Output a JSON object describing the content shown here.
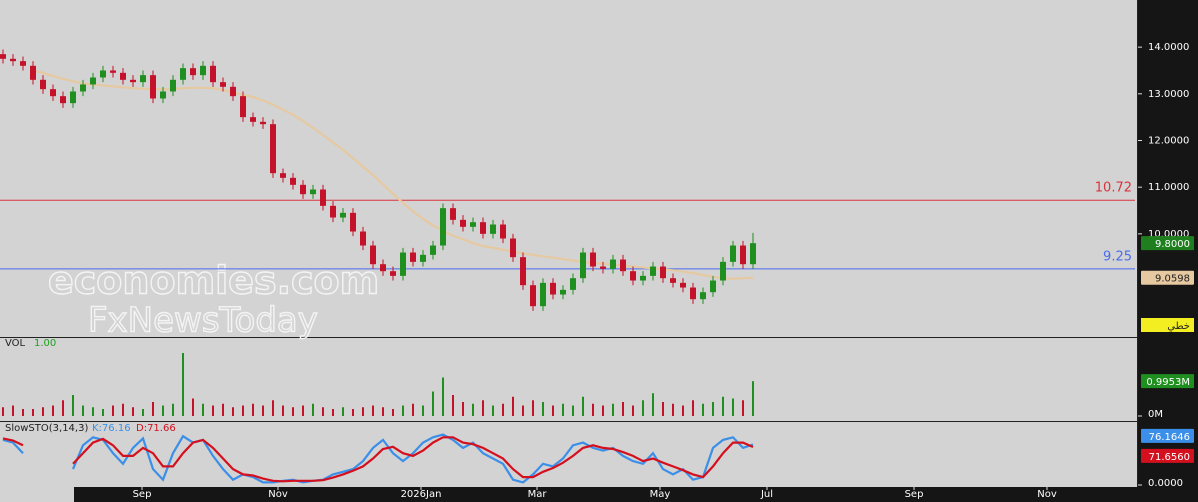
{
  "watermark": [
    "economies.com",
    "FxNewsToday"
  ],
  "chart_data": [
    {
      "type": "candlestick",
      "open": [
        13.85,
        13.75,
        13.7,
        13.6,
        13.3,
        13.1,
        12.95,
        12.8,
        13.05,
        13.2,
        13.35,
        13.5,
        13.45,
        13.3,
        13.25,
        13.4,
        12.9,
        13.05,
        13.3,
        13.55,
        13.4,
        13.6,
        13.25,
        13.15,
        12.95,
        12.5,
        12.4,
        12.35,
        11.3,
        11.2,
        11.05,
        10.85,
        10.95,
        10.6,
        10.35,
        10.45,
        10.05,
        9.75,
        9.35,
        9.2,
        9.1,
        9.6,
        9.4,
        9.55,
        9.75,
        10.55,
        10.3,
        10.15,
        10.25,
        10.0,
        10.2,
        9.9,
        9.5,
        8.9,
        8.45,
        8.95,
        8.7,
        8.8,
        9.05,
        9.6,
        9.3,
        9.25,
        9.45,
        9.2,
        9.0,
        9.1,
        9.3,
        9.05,
        8.95,
        8.85,
        8.6,
        8.75,
        9.0,
        9.4,
        9.75,
        9.35
      ],
      "high": [
        13.95,
        13.85,
        13.8,
        13.7,
        13.4,
        13.2,
        13.05,
        13.15,
        13.3,
        13.45,
        13.6,
        13.6,
        13.55,
        13.4,
        13.5,
        13.5,
        13.15,
        13.4,
        13.65,
        13.65,
        13.7,
        13.7,
        13.35,
        13.25,
        13.05,
        12.6,
        12.5,
        12.45,
        11.4,
        11.3,
        11.15,
        11.05,
        11.05,
        10.7,
        10.55,
        10.55,
        10.15,
        9.85,
        9.45,
        9.3,
        9.7,
        9.7,
        9.65,
        9.85,
        10.65,
        10.65,
        10.4,
        10.35,
        10.35,
        10.3,
        10.3,
        10.0,
        9.6,
        9.0,
        9.05,
        9.05,
        8.9,
        9.15,
        9.7,
        9.7,
        9.4,
        9.55,
        9.55,
        9.3,
        9.2,
        9.4,
        9.4,
        9.15,
        9.05,
        8.95,
        8.85,
        9.1,
        9.5,
        9.85,
        9.85,
        10.02
      ],
      "low": [
        13.65,
        13.6,
        13.5,
        13.2,
        13.0,
        12.85,
        12.7,
        12.7,
        12.95,
        13.1,
        13.25,
        13.35,
        13.2,
        13.15,
        13.15,
        12.8,
        12.8,
        12.95,
        13.2,
        13.3,
        13.3,
        13.15,
        13.05,
        12.85,
        12.4,
        12.3,
        12.25,
        11.2,
        11.1,
        10.95,
        10.75,
        10.75,
        10.5,
        10.25,
        10.25,
        9.95,
        9.65,
        9.25,
        9.1,
        9.0,
        9.0,
        9.3,
        9.3,
        9.45,
        9.65,
        10.2,
        10.05,
        10.05,
        9.9,
        9.9,
        9.8,
        9.4,
        8.8,
        8.35,
        8.35,
        8.6,
        8.6,
        8.7,
        8.95,
        9.2,
        9.15,
        9.15,
        9.1,
        8.9,
        8.9,
        9.0,
        8.95,
        8.85,
        8.75,
        8.5,
        8.5,
        8.65,
        8.9,
        9.3,
        9.25,
        9.25
      ],
      "close": [
        13.75,
        13.7,
        13.6,
        13.3,
        13.1,
        12.95,
        12.8,
        13.05,
        13.2,
        13.35,
        13.5,
        13.45,
        13.3,
        13.25,
        13.4,
        12.9,
        13.05,
        13.3,
        13.55,
        13.4,
        13.6,
        13.25,
        13.15,
        12.95,
        12.5,
        12.4,
        12.35,
        11.3,
        11.2,
        11.05,
        10.85,
        10.95,
        10.6,
        10.35,
        10.45,
        10.05,
        9.75,
        9.35,
        9.2,
        9.1,
        9.6,
        9.4,
        9.55,
        9.75,
        10.55,
        10.3,
        10.15,
        10.25,
        10.0,
        10.2,
        9.9,
        9.5,
        8.9,
        8.45,
        8.95,
        8.7,
        8.8,
        9.05,
        9.6,
        9.3,
        9.25,
        9.45,
        9.2,
        9.0,
        9.1,
        9.3,
        9.05,
        8.95,
        8.85,
        8.6,
        8.75,
        9.0,
        9.4,
        9.75,
        9.35,
        9.8
      ],
      "last_label": "9.8000",
      "up_color": "#1f8f1f",
      "down_color": "#c4122a",
      "moving_average": {
        "color": "#e6c9a0",
        "label": "9.0598",
        "values": [
          null,
          null,
          null,
          13.5,
          13.45,
          13.38,
          13.32,
          13.27,
          13.22,
          13.2,
          13.18,
          13.16,
          13.14,
          13.12,
          13.11,
          13.1,
          13.1,
          13.1,
          13.12,
          13.13,
          13.13,
          13.12,
          13.08,
          13.03,
          12.98,
          12.93,
          12.86,
          12.77,
          12.66,
          12.55,
          12.42,
          12.27,
          12.12,
          11.96,
          11.8,
          11.62,
          11.44,
          11.26,
          11.06,
          10.86,
          10.66,
          10.48,
          10.32,
          10.18,
          10.06,
          9.96,
          9.88,
          9.8,
          9.74,
          9.7,
          9.66,
          9.62,
          9.58,
          9.55,
          9.52,
          9.49,
          9.46,
          9.43,
          9.4,
          9.38,
          9.36,
          9.34,
          9.32,
          9.3,
          9.28,
          9.26,
          9.24,
          9.22,
          9.19,
          9.16,
          9.12,
          9.08,
          9.05,
          9.04,
          9.05,
          9.0598
        ]
      },
      "hlines": [
        {
          "value": 10.72,
          "color": "#d9343f"
        },
        {
          "value": 9.25,
          "color": "#4a6cf0"
        }
      ],
      "tag": "خطي",
      "ylim": [
        7.79,
        15.01
      ],
      "yticks": [
        {
          "value": 14,
          "label": "14.0000"
        },
        {
          "value": 13,
          "label": "13.0000"
        },
        {
          "value": 12,
          "label": "12.0000"
        },
        {
          "value": 11,
          "label": "11.0000"
        },
        {
          "value": 10,
          "label": "10.0000"
        }
      ]
    },
    {
      "type": "volume",
      "title": "VOL",
      "subtitle": "1.00",
      "values": [
        0.25,
        0.3,
        0.2,
        0.2,
        0.25,
        0.3,
        0.45,
        0.6,
        0.3,
        0.25,
        0.2,
        0.3,
        0.35,
        0.25,
        0.2,
        0.4,
        0.3,
        0.35,
        1.8,
        0.5,
        0.35,
        0.3,
        0.35,
        0.25,
        0.3,
        0.35,
        0.3,
        0.45,
        0.3,
        0.25,
        0.3,
        0.35,
        0.25,
        0.2,
        0.25,
        0.2,
        0.25,
        0.3,
        0.25,
        0.2,
        0.3,
        0.35,
        0.3,
        0.7,
        1.1,
        0.6,
        0.4,
        0.35,
        0.45,
        0.3,
        0.35,
        0.55,
        0.3,
        0.45,
        0.4,
        0.3,
        0.35,
        0.3,
        0.55,
        0.35,
        0.3,
        0.35,
        0.4,
        0.3,
        0.45,
        0.65,
        0.4,
        0.35,
        0.3,
        0.45,
        0.35,
        0.4,
        0.55,
        0.5,
        0.45,
        0.9953
      ],
      "last_label": "0.9953M",
      "ylim": [
        0,
        2.23
      ],
      "yticks": [
        {
          "value": 0,
          "label": "0M"
        }
      ]
    },
    {
      "type": "stochastic",
      "title": "SlowSTO(3,14,3)",
      "series": [
        {
          "name": "K:76.16",
          "color": "#3b8fe8",
          "last_label": "76.1646",
          "values": [
            85,
            80,
            60,
            null,
            null,
            null,
            null,
            30,
            75,
            90,
            85,
            60,
            40,
            70,
            88,
            30,
            10,
            60,
            92,
            80,
            85,
            55,
            30,
            10,
            20,
            15,
            5,
            5,
            8,
            10,
            5,
            8,
            10,
            20,
            25,
            30,
            45,
            70,
            85,
            60,
            45,
            60,
            80,
            90,
            95,
            85,
            70,
            80,
            60,
            50,
            40,
            10,
            5,
            20,
            40,
            35,
            50,
            75,
            80,
            70,
            65,
            70,
            55,
            45,
            40,
            60,
            30,
            20,
            30,
            10,
            15,
            70,
            85,
            90,
            70,
            76.1646
          ]
        },
        {
          "name": "D:71.66",
          "color": "#d4101e",
          "last_label": "71.6560",
          "values": [
            88,
            84,
            75,
            null,
            null,
            null,
            null,
            40,
            60,
            80,
            87,
            75,
            55,
            55,
            70,
            60,
            35,
            35,
            60,
            80,
            85,
            70,
            50,
            30,
            20,
            18,
            12,
            8,
            7,
            8,
            8,
            8,
            9,
            14,
            20,
            27,
            35,
            50,
            68,
            72,
            60,
            55,
            65,
            80,
            90,
            90,
            80,
            77,
            70,
            60,
            50,
            30,
            15,
            15,
            25,
            32,
            42,
            55,
            70,
            75,
            70,
            68,
            62,
            55,
            45,
            50,
            42,
            35,
            28,
            20,
            15,
            35,
            60,
            80,
            80,
            71.656
          ]
        }
      ],
      "ylim": [
        0,
        100
      ],
      "yticks": [
        {
          "value": 0,
          "label": "0.0000"
        }
      ],
      "xlim": [
        -0.3,
        113.2
      ],
      "xticks": [
        {
          "value": 13.9,
          "label": "Sep"
        },
        {
          "value": 27.5,
          "label": "Nov"
        },
        {
          "value": 41.8,
          "label": "2026Jan"
        },
        {
          "value": 53.4,
          "label": "Mar"
        },
        {
          "value": 65.7,
          "label": "May"
        },
        {
          "value": 76.4,
          "label": "Jul"
        },
        {
          "value": 91.1,
          "label": "Sep"
        },
        {
          "value": 104.4,
          "label": "Nov"
        }
      ]
    }
  ]
}
